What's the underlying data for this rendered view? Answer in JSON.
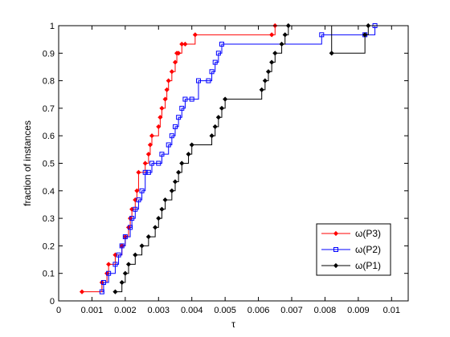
{
  "chart_data": {
    "type": "line",
    "step": true,
    "xlabel": "τ",
    "ylabel": "fraction of instances",
    "xlim": [
      0,
      0.0105
    ],
    "ylim": [
      0,
      1
    ],
    "xticks": [
      0,
      0.001,
      0.002,
      0.003,
      0.004,
      0.005,
      0.006,
      0.007,
      0.008,
      0.009,
      0.01
    ],
    "xtick_labels": [
      "0",
      "0.001",
      "0.002",
      "0.003",
      "0.004",
      "0.005",
      "0.006",
      "0.007",
      "0.008",
      "0.009",
      "0.01"
    ],
    "yticks": [
      0,
      0.1,
      0.2,
      0.3,
      0.4,
      0.5,
      0.6,
      0.7,
      0.8,
      0.9,
      1
    ],
    "ytick_labels": [
      "0",
      "0.1",
      "0.2",
      "0.3",
      "0.4",
      "0.5",
      "0.6",
      "0.7",
      "0.8",
      "0.9",
      "1"
    ],
    "grid": false,
    "legend_position": "bottom-right",
    "series": [
      {
        "name": "ω(P3)",
        "color": "#ff0000",
        "marker": "diamond",
        "x": [
          0.0007,
          0.0013,
          0.00145,
          0.0015,
          0.0017,
          0.0019,
          0.002,
          0.0021,
          0.00215,
          0.0022,
          0.0023,
          0.00235,
          0.0024,
          0.0026,
          0.0027,
          0.00275,
          0.0028,
          0.003,
          0.00305,
          0.0031,
          0.0032,
          0.00325,
          0.0033,
          0.0034,
          0.0035,
          0.00355,
          0.0036,
          0.0037,
          0.0038,
          0.0041,
          0.0064,
          0.0065
        ],
        "y": [
          0.033,
          0.067,
          0.1,
          0.133,
          0.167,
          0.2,
          0.233,
          0.267,
          0.3,
          0.333,
          0.367,
          0.4,
          0.467,
          0.5,
          0.533,
          0.567,
          0.6,
          0.633,
          0.667,
          0.7,
          0.733,
          0.767,
          0.8,
          0.833,
          0.867,
          0.9,
          0.9,
          0.933,
          0.933,
          0.967,
          0.967,
          1.0
        ]
      },
      {
        "name": "ω(P2)",
        "color": "#0000ff",
        "marker": "square",
        "x": [
          0.0013,
          0.00135,
          0.0015,
          0.0017,
          0.0018,
          0.0019,
          0.002,
          0.00215,
          0.0022,
          0.0023,
          0.0024,
          0.0025,
          0.0026,
          0.0027,
          0.0028,
          0.003,
          0.0031,
          0.0033,
          0.0034,
          0.0035,
          0.0036,
          0.0037,
          0.0038,
          0.004,
          0.0042,
          0.0045,
          0.0046,
          0.0047,
          0.0048,
          0.0049,
          0.0079,
          0.0092,
          0.0095
        ],
        "y": [
          0.033,
          0.067,
          0.1,
          0.133,
          0.167,
          0.2,
          0.233,
          0.267,
          0.3,
          0.333,
          0.367,
          0.4,
          0.467,
          0.467,
          0.5,
          0.5,
          0.533,
          0.567,
          0.6,
          0.633,
          0.667,
          0.7,
          0.733,
          0.733,
          0.8,
          0.8,
          0.833,
          0.867,
          0.9,
          0.933,
          0.967,
          0.967,
          1.0
        ]
      },
      {
        "name": "ω(P1)",
        "color": "#000000",
        "marker": "diamond",
        "x": [
          0.0017,
          0.0019,
          0.002,
          0.0021,
          0.0023,
          0.0025,
          0.0027,
          0.0029,
          0.003,
          0.0031,
          0.0032,
          0.0034,
          0.0035,
          0.0036,
          0.0037,
          0.0039,
          0.004,
          0.0046,
          0.0047,
          0.0048,
          0.0049,
          0.005,
          0.0061,
          0.0062,
          0.0063,
          0.0064,
          0.0065,
          0.0067,
          0.0068,
          0.0069,
          0.0082,
          0.0092,
          0.0093
        ],
        "y": [
          0.033,
          0.067,
          0.1,
          0.133,
          0.167,
          0.2,
          0.233,
          0.267,
          0.3,
          0.333,
          0.367,
          0.4,
          0.433,
          0.467,
          0.5,
          0.533,
          0.567,
          0.6,
          0.633,
          0.667,
          0.7,
          0.733,
          0.767,
          0.8,
          0.833,
          0.867,
          0.9,
          0.933,
          0.967,
          1.0,
          0.9,
          0.967,
          1.0
        ]
      }
    ]
  }
}
